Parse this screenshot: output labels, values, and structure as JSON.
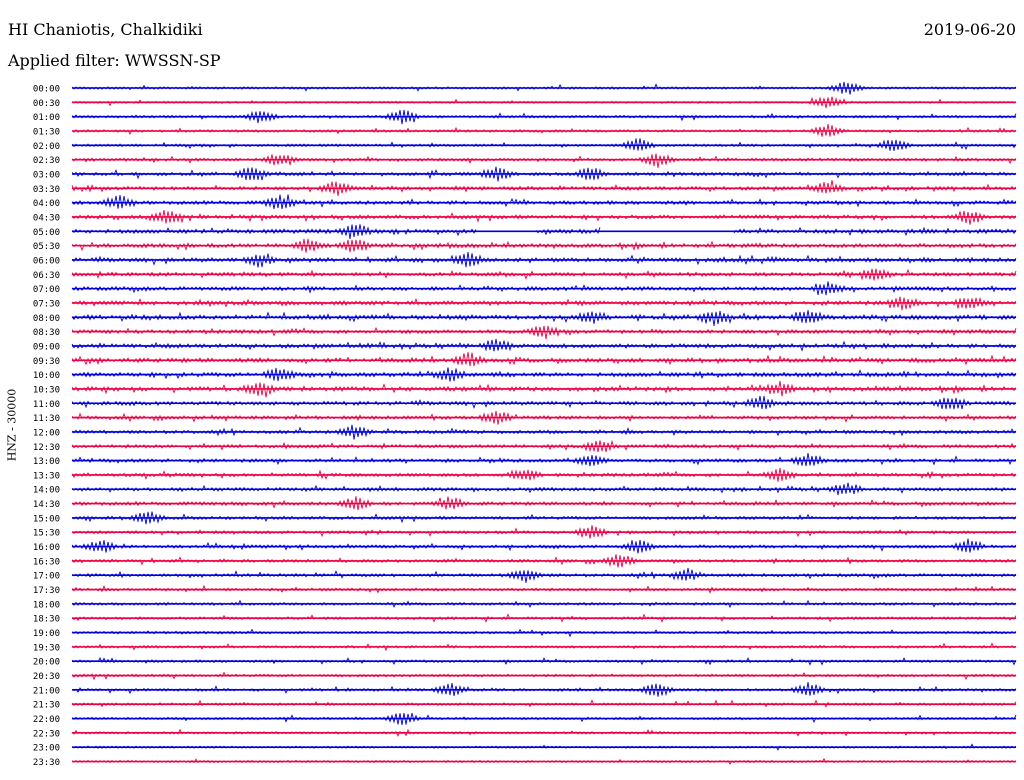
{
  "header": {
    "station": "HI Chaniotis, Chalkidiki",
    "date": "2019-06-20",
    "filter": "Applied filter: WWSSN-SP"
  },
  "colors": {
    "even_trace": "#0000dd",
    "odd_trace": "#ee0044",
    "background": "#ffffff"
  },
  "chart_data": {
    "type": "line",
    "title": "HI Chaniotis, Chalkidiki",
    "ylabel": "HNZ - 30000",
    "xlabel": "",
    "grid": false,
    "traces": [
      {
        "label": "00:00",
        "activity": 0.25,
        "events": [
          0.82
        ]
      },
      {
        "label": "00:30",
        "activity": 0.2,
        "events": [
          0.8
        ]
      },
      {
        "label": "01:00",
        "activity": 0.3,
        "events": [
          0.2,
          0.35
        ]
      },
      {
        "label": "01:30",
        "activity": 0.3,
        "events": [
          0.8
        ]
      },
      {
        "label": "02:00",
        "activity": 0.3,
        "events": [
          0.6,
          0.87
        ]
      },
      {
        "label": "02:30",
        "activity": 0.4,
        "events": [
          0.22,
          0.62
        ]
      },
      {
        "label": "03:00",
        "activity": 0.5,
        "events": [
          0.19,
          0.45,
          0.55
        ]
      },
      {
        "label": "03:30",
        "activity": 0.55,
        "events": [
          0.28,
          0.8
        ]
      },
      {
        "label": "04:00",
        "activity": 0.55,
        "events": [
          0.05,
          0.22
        ]
      },
      {
        "label": "04:30",
        "activity": 0.6,
        "events": [
          0.1,
          0.95
        ]
      },
      {
        "label": "05:00",
        "activity": 0.65,
        "events": [
          0.3
        ],
        "gaps": [
          [
            0.43,
            0.49
          ],
          [
            0.56,
            0.7
          ]
        ]
      },
      {
        "label": "05:30",
        "activity": 0.65,
        "events": [
          0.25,
          0.3
        ]
      },
      {
        "label": "06:00",
        "activity": 0.65,
        "events": [
          0.2,
          0.42
        ]
      },
      {
        "label": "06:30",
        "activity": 0.6,
        "events": [
          0.85
        ]
      },
      {
        "label": "07:00",
        "activity": 0.6,
        "events": [
          0.8
        ]
      },
      {
        "label": "07:30",
        "activity": 0.65,
        "events": [
          0.88,
          0.95
        ]
      },
      {
        "label": "08:00",
        "activity": 0.75,
        "events": [
          0.55,
          0.68,
          0.78
        ]
      },
      {
        "label": "08:30",
        "activity": 0.6,
        "events": [
          0.5
        ]
      },
      {
        "label": "09:00",
        "activity": 0.65,
        "events": [
          0.45
        ]
      },
      {
        "label": "09:30",
        "activity": 0.7,
        "events": [
          0.42
        ]
      },
      {
        "label": "10:00",
        "activity": 0.7,
        "events": [
          0.22,
          0.4
        ]
      },
      {
        "label": "10:30",
        "activity": 0.7,
        "events": [
          0.2,
          0.75
        ]
      },
      {
        "label": "11:00",
        "activity": 0.6,
        "events": [
          0.73,
          0.93
        ]
      },
      {
        "label": "11:30",
        "activity": 0.5,
        "events": [
          0.45
        ]
      },
      {
        "label": "12:00",
        "activity": 0.5,
        "events": [
          0.3
        ]
      },
      {
        "label": "12:30",
        "activity": 0.5,
        "events": [
          0.56
        ]
      },
      {
        "label": "13:00",
        "activity": 0.5,
        "events": [
          0.55,
          0.78
        ]
      },
      {
        "label": "13:30",
        "activity": 0.5,
        "events": [
          0.48,
          0.75
        ]
      },
      {
        "label": "14:00",
        "activity": 0.5,
        "events": [
          0.82
        ]
      },
      {
        "label": "14:30",
        "activity": 0.5,
        "events": [
          0.3,
          0.4
        ]
      },
      {
        "label": "15:00",
        "activity": 0.45,
        "events": [
          0.08
        ]
      },
      {
        "label": "15:30",
        "activity": 0.4,
        "events": [
          0.55
        ]
      },
      {
        "label": "16:00",
        "activity": 0.45,
        "events": [
          0.03,
          0.6,
          0.95
        ]
      },
      {
        "label": "16:30",
        "activity": 0.4,
        "events": [
          0.58
        ]
      },
      {
        "label": "17:00",
        "activity": 0.45,
        "events": [
          0.48,
          0.65
        ]
      },
      {
        "label": "17:30",
        "activity": 0.35,
        "events": []
      },
      {
        "label": "18:00",
        "activity": 0.35,
        "events": []
      },
      {
        "label": "18:30",
        "activity": 0.35,
        "events": []
      },
      {
        "label": "19:00",
        "activity": 0.3,
        "events": []
      },
      {
        "label": "19:30",
        "activity": 0.3,
        "events": []
      },
      {
        "label": "20:00",
        "activity": 0.3,
        "events": []
      },
      {
        "label": "20:30",
        "activity": 0.3,
        "events": []
      },
      {
        "label": "21:00",
        "activity": 0.35,
        "events": [
          0.4,
          0.62,
          0.78
        ]
      },
      {
        "label": "21:30",
        "activity": 0.3,
        "events": []
      },
      {
        "label": "22:00",
        "activity": 0.25,
        "events": [
          0.35
        ]
      },
      {
        "label": "22:30",
        "activity": 0.25,
        "events": []
      },
      {
        "label": "23:00",
        "activity": 0.2,
        "events": []
      },
      {
        "label": "23:30",
        "activity": 0.2,
        "events": []
      }
    ]
  }
}
